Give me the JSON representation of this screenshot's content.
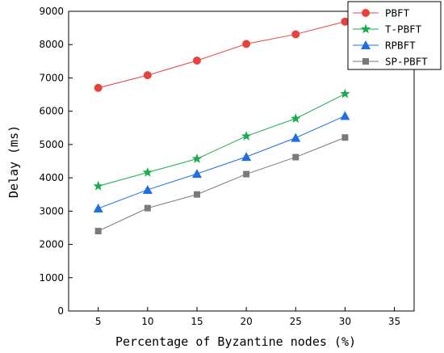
{
  "chart_data": {
    "type": "line",
    "title": "",
    "xlabel": "Percentage of Byzantine nodes (%)",
    "ylabel": "Delay (ms)",
    "x": [
      5,
      10,
      15,
      20,
      25,
      30
    ],
    "xlim": [
      2,
      37
    ],
    "ylim": [
      0,
      9000
    ],
    "xticks": [
      5,
      10,
      15,
      20,
      25,
      30,
      35
    ],
    "yticks": [
      0,
      1000,
      2000,
      3000,
      4000,
      5000,
      6000,
      7000,
      8000,
      9000
    ],
    "grid": false,
    "legend_position": "top-right",
    "series": [
      {
        "name": "PBFT",
        "marker": "circle",
        "color": "#e8423f",
        "values": [
          6700,
          7080,
          7520,
          8020,
          8310,
          8690
        ]
      },
      {
        "name": "T-PBFT",
        "marker": "star",
        "color": "#1aab4f",
        "values": [
          3750,
          4160,
          4570,
          5250,
          5780,
          6520
        ]
      },
      {
        "name": "RPBFT",
        "marker": "triangle",
        "color": "#1f6fe0",
        "values": [
          3080,
          3640,
          4120,
          4630,
          5200,
          5860
        ]
      },
      {
        "name": "SP-PBFT",
        "marker": "square",
        "color": "#7a7a7a",
        "values": [
          2400,
          3090,
          3500,
          4110,
          4620,
          5210
        ]
      }
    ]
  }
}
